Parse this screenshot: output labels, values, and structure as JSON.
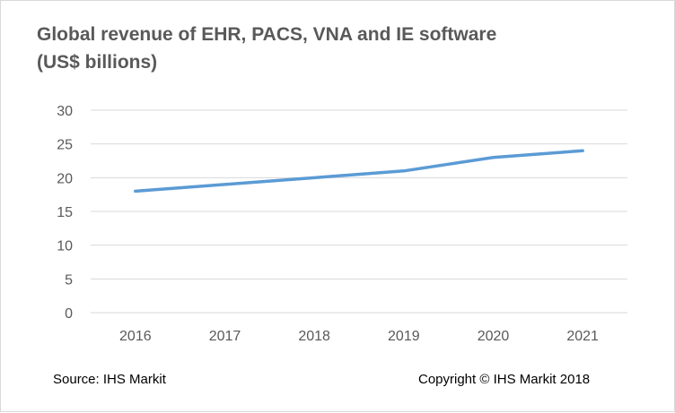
{
  "chart_data": {
    "type": "line",
    "title_lines": [
      "Global revenue of EHR, PACS, VNA and IE software",
      "(US$ billions)"
    ],
    "xlabel": "",
    "ylabel": "",
    "categories": [
      "2016",
      "2017",
      "2018",
      "2019",
      "2020",
      "2021"
    ],
    "series": [
      {
        "values": [
          18,
          19,
          20,
          21,
          23,
          24
        ]
      }
    ],
    "ylim": [
      0,
      30
    ],
    "yticks": [
      0,
      5,
      10,
      15,
      20,
      25,
      30
    ],
    "grid": true,
    "line_color": "#5b9bd5",
    "grid_color": "#d9d9d9",
    "text_color": "#595959"
  },
  "footer": {
    "source": "Source: IHS Markit",
    "copyright": "Copyright © IHS Markit 2018"
  }
}
